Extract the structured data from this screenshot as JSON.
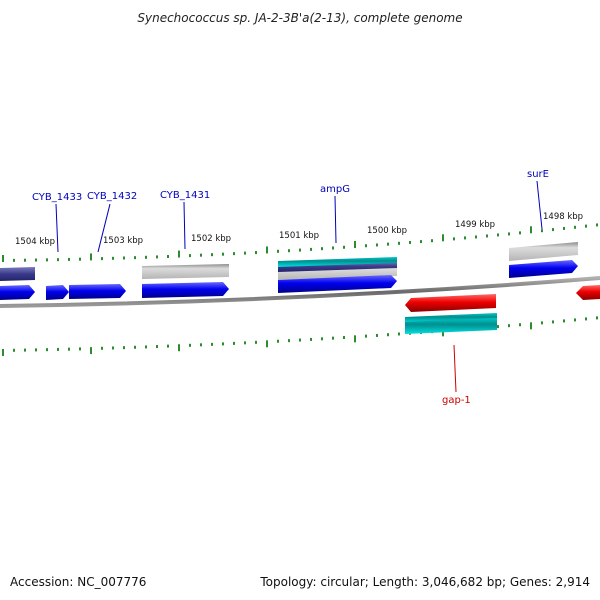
{
  "title": "Synechococcus sp. JA-2-3B'a(2-13), complete genome",
  "footer": {
    "accession": "Accession: NC_007776",
    "summary": "Topology: circular; Length: 3,046,682 bp; Genes: 2,914"
  },
  "ticks": [
    "1504 kbp",
    "1503 kbp",
    "1502 kbp",
    "1501 kbp",
    "1500 kbp",
    "1499 kbp",
    "1498 kbp"
  ],
  "gene_labels": [
    {
      "name": "CYB_1433",
      "color": "#0000bb"
    },
    {
      "name": "CYB_1432",
      "color": "#0000bb"
    },
    {
      "name": "CYB_1431",
      "color": "#0000bb"
    },
    {
      "name": "ampG",
      "color": "#0000bb"
    },
    {
      "name": "surE",
      "color": "#0000bb"
    },
    {
      "name": "gap-1",
      "color": "#cc0000"
    }
  ],
  "colors": {
    "forward_cds": "#0000ee",
    "reverse_cds": "#ee0000",
    "gene": "#999999",
    "misc_feature": "#00b5b5",
    "repeat_region": "#3a3a8a",
    "backbone": "#808080",
    "tick": "#2e8b2e"
  }
}
